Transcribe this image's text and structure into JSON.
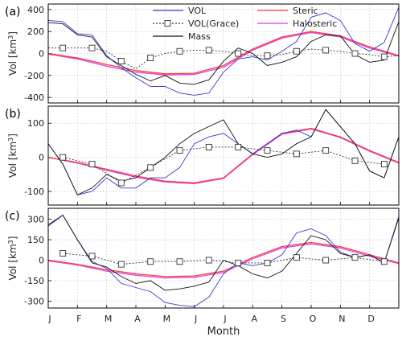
{
  "chart_data": {
    "type": "line",
    "xlabel": "Month",
    "months": [
      "J",
      "F",
      "M",
      "A",
      "M",
      "J",
      "J",
      "A",
      "S",
      "O",
      "N",
      "D"
    ],
    "legend": [
      {
        "name": "VOL",
        "color": "#3a3ad0",
        "style": "solid"
      },
      {
        "name": "VOL(Grace)",
        "color": "#333333",
        "style": "dashed-square"
      },
      {
        "name": "Mass",
        "color": "#111111",
        "style": "solid"
      },
      {
        "name": "Steric",
        "color": "#ff3b3b",
        "style": "solid"
      },
      {
        "name": "Halosteric",
        "color": "#e040e0",
        "style": "solid"
      }
    ],
    "panels": [
      {
        "label": "(a)",
        "ylabel_main": "Vol [km",
        "ylabel_sup": "3",
        "ylabel_end": "]",
        "ylim": [
          -450,
          450
        ],
        "yticks": [
          -400,
          -200,
          0,
          200,
          400
        ],
        "series": [
          {
            "name": "VOL",
            "x": [
              0,
              0.5,
              1,
              1.5,
              2,
              2.5,
              3,
              3.5,
              4,
              4.5,
              5,
              5.5,
              6,
              6.5,
              7,
              7.5,
              8,
              8.5,
              9,
              9.5,
              10,
              10.5,
              11,
              11.5,
              12
            ],
            "y": [
              300,
              290,
              180,
              170,
              -20,
              -130,
              -220,
              -300,
              -300,
              -360,
              -380,
              -360,
              -170,
              -50,
              -30,
              -60,
              20,
              110,
              330,
              370,
              300,
              90,
              20,
              100,
              420
            ]
          },
          {
            "name": "Mass",
            "x": [
              0,
              0.5,
              1,
              1.5,
              2,
              2.5,
              3,
              3.5,
              4,
              4.5,
              5,
              5.5,
              6,
              6.5,
              7,
              7.5,
              8,
              8.5,
              9,
              9.5,
              10,
              10.5,
              11,
              11.5,
              12
            ],
            "y": [
              280,
              270,
              170,
              150,
              -30,
              -110,
              -190,
              -250,
              -200,
              -270,
              -280,
              -240,
              -70,
              50,
              0,
              -110,
              -80,
              -30,
              110,
              170,
              160,
              -10,
              -80,
              -60,
              290
            ]
          },
          {
            "name": "Steric",
            "x": [
              0,
              1,
              2,
              3,
              4,
              5,
              6,
              7,
              8,
              9,
              10,
              11,
              12
            ],
            "y": [
              0,
              -40,
              -100,
              -155,
              -185,
              -180,
              -110,
              40,
              150,
              200,
              160,
              60,
              -20
            ]
          },
          {
            "name": "Halosteric",
            "x": [
              0,
              1,
              2,
              3,
              4,
              5,
              6,
              7,
              8,
              9,
              10,
              11,
              12
            ],
            "y": [
              -5,
              -50,
              -115,
              -170,
              -195,
              -190,
              -125,
              30,
              140,
              190,
              150,
              50,
              -25
            ]
          },
          {
            "name": "VOL(Grace)",
            "x": [
              0,
              0.5,
              1,
              1.5,
              2,
              2.5,
              3,
              3.5,
              4,
              4.5,
              5,
              5.5,
              6,
              6.5,
              7,
              7.5,
              8,
              8.5,
              9,
              9.5,
              10,
              10.5,
              11,
              11.5,
              12
            ],
            "y": [
              50,
              50,
              50,
              50,
              20,
              -70,
              -140,
              -40,
              0,
              20,
              30,
              30,
              20,
              0,
              -20,
              -20,
              -10,
              20,
              40,
              30,
              20,
              0,
              -10,
              -30,
              -20
            ]
          }
        ],
        "grace_markers_x": [
          0.5,
          1.5,
          2.5,
          3.5,
          4.5,
          5.5,
          6.5,
          7.5,
          8.5,
          9.5,
          10.5,
          11.5
        ]
      },
      {
        "label": "(b)",
        "ylabel_main": "Vol [km",
        "ylabel_sup": "3",
        "ylabel_end": "]",
        "ylim": [
          -140,
          150
        ],
        "yticks": [
          -100,
          0,
          100
        ],
        "series": [
          {
            "name": "VOL",
            "x": [
              0,
              0.5,
              1,
              1.5,
              2,
              2.5,
              3,
              3.5,
              4,
              4.5,
              5,
              5.5,
              6,
              6.5,
              7,
              7.5,
              8,
              8.5,
              9,
              9.5,
              10,
              10.5,
              11,
              11.5,
              12
            ],
            "y": [
              40,
              -20,
              -110,
              -100,
              -60,
              -90,
              -90,
              -60,
              -60,
              -30,
              40,
              60,
              70,
              40,
              10,
              40,
              70,
              80,
              60,
              140,
              90,
              40,
              -40,
              -60,
              60
            ]
          },
          {
            "name": "Mass",
            "x": [
              0,
              0.5,
              1,
              1.5,
              2,
              2.5,
              3,
              3.5,
              4,
              4.5,
              5,
              5.5,
              6,
              6.5,
              7,
              7.5,
              8,
              8.5,
              9,
              9.5,
              10,
              10.5,
              11,
              11.5,
              12
            ],
            "y": [
              40,
              -20,
              -110,
              -90,
              -50,
              -70,
              -60,
              -30,
              0,
              40,
              70,
              90,
              110,
              40,
              10,
              0,
              10,
              40,
              60,
              140,
              90,
              40,
              -40,
              -60,
              60
            ]
          },
          {
            "name": "Steric",
            "x": [
              0,
              1,
              2,
              3,
              4,
              5,
              6,
              7,
              8,
              9,
              10,
              11,
              12
            ],
            "y": [
              0,
              -15,
              -35,
              -55,
              -70,
              -75,
              -60,
              10,
              70,
              85,
              60,
              20,
              -15
            ]
          },
          {
            "name": "Halosteric",
            "x": [
              0,
              1,
              2,
              3,
              4,
              5,
              6,
              7,
              8,
              9,
              10,
              11,
              12
            ],
            "y": [
              0,
              -17,
              -38,
              -58,
              -72,
              -77,
              -62,
              8,
              68,
              83,
              58,
              18,
              -17
            ]
          },
          {
            "name": "VOL(Grace)",
            "x": [
              0.5,
              1.5,
              2.5,
              3.5,
              4.5,
              5.5,
              6.5,
              7.5,
              8.5,
              9.5,
              10.5,
              11.5
            ],
            "y": [
              0,
              -20,
              -75,
              -30,
              20,
              30,
              30,
              20,
              10,
              20,
              -10,
              -20
            ]
          }
        ],
        "grace_markers_x": [
          0.5,
          1.5,
          2.5,
          3.5,
          4.5,
          5.5,
          6.5,
          7.5,
          8.5,
          9.5,
          10.5,
          11.5
        ]
      },
      {
        "label": "(c)",
        "ylabel_main": "Vol [km",
        "ylabel_sup": "3",
        "ylabel_end": "]",
        "ylim": [
          -350,
          380
        ],
        "yticks": [
          -300,
          -150,
          0,
          150,
          300
        ],
        "series": [
          {
            "name": "VOL",
            "x": [
              0,
              0.5,
              1,
              1.5,
              2,
              2.5,
              3,
              3.5,
              4,
              4.5,
              5,
              5.5,
              6,
              6.5,
              7,
              7.5,
              8,
              8.5,
              9,
              9.5,
              10,
              10.5,
              11,
              11.5,
              12
            ],
            "y": [
              250,
              330,
              150,
              -10,
              -60,
              -170,
              -200,
              -230,
              -310,
              -330,
              -340,
              -270,
              -100,
              -20,
              -40,
              -20,
              40,
              200,
              230,
              180,
              60,
              20,
              40,
              -20,
              320
            ]
          },
          {
            "name": "Mass",
            "x": [
              0,
              0.5,
              1,
              1.5,
              2,
              2.5,
              3,
              3.5,
              4,
              4.5,
              5,
              5.5,
              6,
              6.5,
              7,
              7.5,
              8,
              8.5,
              9,
              9.5,
              10,
              10.5,
              11,
              11.5,
              12
            ],
            "y": [
              260,
              330,
              150,
              -20,
              -50,
              -120,
              -170,
              -150,
              -220,
              -210,
              -190,
              -160,
              0,
              -40,
              -100,
              -130,
              -80,
              50,
              180,
              150,
              50,
              20,
              40,
              -20,
              310
            ]
          },
          {
            "name": "Steric",
            "x": [
              0,
              1,
              2,
              3,
              4,
              5,
              6,
              7,
              8,
              9,
              10,
              11,
              12
            ],
            "y": [
              0,
              -30,
              -70,
              -100,
              -120,
              -115,
              -80,
              20,
              100,
              130,
              100,
              40,
              -20
            ]
          },
          {
            "name": "Halosteric",
            "x": [
              0,
              1,
              2,
              3,
              4,
              5,
              6,
              7,
              8,
              9,
              10,
              11,
              12
            ],
            "y": [
              -5,
              -35,
              -80,
              -110,
              -130,
              -125,
              -90,
              10,
              90,
              120,
              90,
              30,
              -25
            ]
          },
          {
            "name": "VOL(Grace)",
            "x": [
              0.5,
              1.5,
              2.5,
              3.5,
              4.5,
              5.5,
              6.5,
              7.5,
              8.5,
              9.5,
              10.5,
              11.5
            ],
            "y": [
              50,
              30,
              -30,
              -10,
              -10,
              0,
              -20,
              -20,
              20,
              0,
              20,
              -10
            ]
          }
        ],
        "grace_markers_x": [
          0.5,
          1.5,
          2.5,
          3.5,
          4.5,
          5.5,
          6.5,
          7.5,
          8.5,
          9.5,
          10.5,
          11.5
        ]
      }
    ]
  }
}
